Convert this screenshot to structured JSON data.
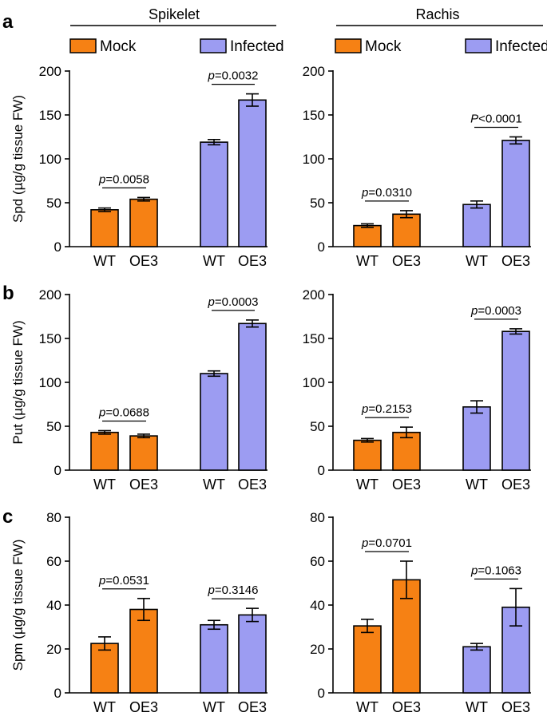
{
  "colors": {
    "mock": "#f68114",
    "infected": "#9c9cf2",
    "stroke": "#000000"
  },
  "panel_letters": [
    "a",
    "b",
    "c"
  ],
  "columns": [
    {
      "title": "Spikelet",
      "legend": [
        {
          "label": "Mock",
          "color": "mock"
        },
        {
          "label": "Infected",
          "color": "infected"
        }
      ]
    },
    {
      "title": "Rachis",
      "legend": [
        {
          "label": "Mock",
          "color": "mock"
        },
        {
          "label": "Infected",
          "color": "infected"
        }
      ]
    }
  ],
  "y_labels": [
    "Spd (µg/g tissue FW)",
    "Put (µg/g tissue FW)",
    "Spm (µg/g tissue FW)"
  ],
  "chart_data": [
    {
      "id": "a-spikelet",
      "type": "bar",
      "ylim": [
        0,
        200
      ],
      "yticks": [
        0,
        50,
        100,
        150,
        200
      ],
      "categories": [
        "WT",
        "OE3",
        "WT",
        "OE3"
      ],
      "groups": [
        "Mock",
        "Mock",
        "Infected",
        "Infected"
      ],
      "values": [
        42,
        54,
        119,
        167
      ],
      "errors": [
        2,
        2,
        3,
        7
      ],
      "pvalues": [
        {
          "label": "p",
          "op": "=",
          "value": "0.0058",
          "bars": [
            0,
            1
          ]
        },
        {
          "label": "p",
          "op": "=",
          "value": "0.0032",
          "bars": [
            2,
            3
          ]
        }
      ]
    },
    {
      "id": "a-rachis",
      "type": "bar",
      "ylim": [
        0,
        200
      ],
      "yticks": [
        0,
        50,
        100,
        150,
        200
      ],
      "categories": [
        "WT",
        "OE3",
        "WT",
        "OE3"
      ],
      "groups": [
        "Mock",
        "Mock",
        "Infected",
        "Infected"
      ],
      "values": [
        24,
        37,
        48,
        121
      ],
      "errors": [
        2,
        4,
        4,
        4
      ],
      "pvalues": [
        {
          "label": "p",
          "op": "=",
          "value": "0.0310",
          "bars": [
            0,
            1
          ]
        },
        {
          "label": "P",
          "op": "<",
          "value": "0.0001",
          "bars": [
            2,
            3
          ]
        }
      ]
    },
    {
      "id": "b-spikelet",
      "type": "bar",
      "ylim": [
        0,
        200
      ],
      "yticks": [
        0,
        50,
        100,
        150,
        200
      ],
      "categories": [
        "WT",
        "OE3",
        "WT",
        "OE3"
      ],
      "groups": [
        "Mock",
        "Mock",
        "Infected",
        "Infected"
      ],
      "values": [
        43,
        39,
        110,
        167
      ],
      "errors": [
        2,
        2,
        3,
        4
      ],
      "pvalues": [
        {
          "label": "p",
          "op": "=",
          "value": "0.0688",
          "bars": [
            0,
            1
          ]
        },
        {
          "label": "p",
          "op": "=",
          "value": "0.0003",
          "bars": [
            2,
            3
          ]
        }
      ]
    },
    {
      "id": "b-rachis",
      "type": "bar",
      "ylim": [
        0,
        200
      ],
      "yticks": [
        0,
        50,
        100,
        150,
        200
      ],
      "categories": [
        "WT",
        "OE3",
        "WT",
        "OE3"
      ],
      "groups": [
        "Mock",
        "Mock",
        "Infected",
        "Infected"
      ],
      "values": [
        34,
        43,
        72,
        158
      ],
      "errors": [
        2,
        6,
        7,
        3
      ],
      "pvalues": [
        {
          "label": "p",
          "op": "=",
          "value": "0.2153",
          "bars": [
            0,
            1
          ]
        },
        {
          "label": "p",
          "op": "=",
          "value": "0.0003",
          "bars": [
            2,
            3
          ]
        }
      ]
    },
    {
      "id": "c-spikelet",
      "type": "bar",
      "ylim": [
        0,
        80
      ],
      "yticks": [
        0,
        20,
        40,
        60,
        80
      ],
      "categories": [
        "WT",
        "OE3",
        "WT",
        "OE3"
      ],
      "groups": [
        "Mock",
        "Mock",
        "Infected",
        "Infected"
      ],
      "values": [
        22.5,
        38,
        31,
        35.5
      ],
      "errors": [
        3,
        5,
        2,
        3
      ],
      "pvalues": [
        {
          "label": "p",
          "op": "=",
          "value": "0.0531",
          "bars": [
            0,
            1
          ]
        },
        {
          "label": "p",
          "op": "=",
          "value": "0.3146",
          "bars": [
            2,
            3
          ]
        }
      ]
    },
    {
      "id": "c-rachis",
      "type": "bar",
      "ylim": [
        0,
        80
      ],
      "yticks": [
        0,
        20,
        40,
        60,
        80
      ],
      "categories": [
        "WT",
        "OE3",
        "WT",
        "OE3"
      ],
      "groups": [
        "Mock",
        "Mock",
        "Infected",
        "Infected"
      ],
      "values": [
        30.5,
        51.5,
        21,
        39
      ],
      "errors": [
        3,
        8.5,
        1.5,
        8.5
      ],
      "pvalues": [
        {
          "label": "p",
          "op": "=",
          "value": "0.0701",
          "bars": [
            0,
            1
          ]
        },
        {
          "label": "p",
          "op": "=",
          "value": "0.1063",
          "bars": [
            2,
            3
          ]
        }
      ]
    }
  ]
}
